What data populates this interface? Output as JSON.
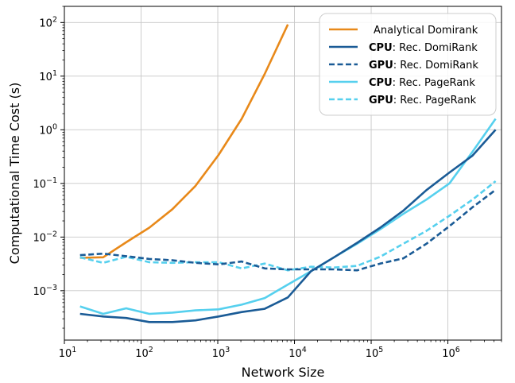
{
  "chart_data": {
    "type": "line",
    "title": "",
    "xlabel": "Network Size",
    "ylabel": "Computational Time Cost (s)",
    "xscale": "log",
    "yscale": "log",
    "xlim": [
      10,
      5000000
    ],
    "ylim": [
      0.00012,
      200
    ],
    "grid": true,
    "legend_position": "top-right",
    "x_ticks": [
      {
        "value": 10,
        "base": "10",
        "exp": "1"
      },
      {
        "value": 100,
        "base": "10",
        "exp": "2"
      },
      {
        "value": 1000,
        "base": "10",
        "exp": "3"
      },
      {
        "value": 10000,
        "base": "10",
        "exp": "4"
      },
      {
        "value": 100000,
        "base": "10",
        "exp": "5"
      },
      {
        "value": 1000000,
        "base": "10",
        "exp": "6"
      }
    ],
    "y_ticks": [
      {
        "value": 0.001,
        "base": "10",
        "exp": "−3"
      },
      {
        "value": 0.01,
        "base": "10",
        "exp": "−2"
      },
      {
        "value": 0.1,
        "base": "10",
        "exp": "−1"
      },
      {
        "value": 1,
        "base": "10",
        "exp": "0"
      },
      {
        "value": 10,
        "base": "10",
        "exp": "1"
      },
      {
        "value": 100,
        "base": "10",
        "exp": "2"
      }
    ],
    "series": [
      {
        "name": "Analytical Domirank",
        "prefix": "",
        "color": "#e8891a",
        "dash": "solid",
        "points": [
          [
            16,
            0.0041
          ],
          [
            32,
            0.0042
          ],
          [
            64,
            0.008
          ],
          [
            128,
            0.015
          ],
          [
            256,
            0.033
          ],
          [
            512,
            0.09
          ],
          [
            1024,
            0.34
          ],
          [
            2048,
            1.6
          ],
          [
            4096,
            11
          ],
          [
            8192,
            92
          ]
        ]
      },
      {
        "name": "Rec. DomiRank",
        "prefix": "CPU",
        "color": "#1a5b96",
        "dash": "solid",
        "points": [
          [
            16,
            0.00037
          ],
          [
            32,
            0.00033
          ],
          [
            64,
            0.00031
          ],
          [
            128,
            0.00026
          ],
          [
            256,
            0.00026
          ],
          [
            512,
            0.00028
          ],
          [
            1024,
            0.00033
          ],
          [
            2048,
            0.0004
          ],
          [
            4096,
            0.00046
          ],
          [
            8192,
            0.00075
          ],
          [
            16384,
            0.0023
          ],
          [
            32768,
            0.0042
          ],
          [
            65536,
            0.0078
          ],
          [
            131072,
            0.015
          ],
          [
            262144,
            0.031
          ],
          [
            524288,
            0.075
          ],
          [
            1048576,
            0.16
          ],
          [
            2097152,
            0.33
          ],
          [
            4194304,
            1.0
          ]
        ]
      },
      {
        "name": "Rec. DomiRank",
        "prefix": "GPU",
        "color": "#1a5b96",
        "dash": "dashed",
        "points": [
          [
            16,
            0.0046
          ],
          [
            32,
            0.0049
          ],
          [
            64,
            0.0044
          ],
          [
            128,
            0.0039
          ],
          [
            256,
            0.0037
          ],
          [
            512,
            0.0033
          ],
          [
            1024,
            0.0031
          ],
          [
            2048,
            0.0035
          ],
          [
            4096,
            0.0026
          ],
          [
            8192,
            0.0025
          ],
          [
            16384,
            0.0025
          ],
          [
            32768,
            0.0025
          ],
          [
            65536,
            0.0024
          ],
          [
            131072,
            0.0032
          ],
          [
            262144,
            0.004
          ],
          [
            524288,
            0.0075
          ],
          [
            1048576,
            0.016
          ],
          [
            2097152,
            0.036
          ],
          [
            4194304,
            0.076
          ]
        ]
      },
      {
        "name": "Rec. PageRank",
        "prefix": "CPU",
        "color": "#56d0ee",
        "dash": "solid",
        "points": [
          [
            16,
            0.00051
          ],
          [
            32,
            0.00037
          ],
          [
            64,
            0.00047
          ],
          [
            128,
            0.00037
          ],
          [
            256,
            0.00039
          ],
          [
            512,
            0.00043
          ],
          [
            1024,
            0.00045
          ],
          [
            2048,
            0.00055
          ],
          [
            4096,
            0.00073
          ],
          [
            8192,
            0.0013
          ],
          [
            16384,
            0.0023
          ],
          [
            32768,
            0.0042
          ],
          [
            65536,
            0.0075
          ],
          [
            131072,
            0.014
          ],
          [
            262144,
            0.027
          ],
          [
            524288,
            0.05
          ],
          [
            1048576,
            0.1
          ],
          [
            2097152,
            0.39
          ],
          [
            4194304,
            1.6
          ]
        ]
      },
      {
        "name": "Rec. PageRank",
        "prefix": "GPU",
        "color": "#56d0ee",
        "dash": "dashed",
        "points": [
          [
            16,
            0.0042
          ],
          [
            32,
            0.0033
          ],
          [
            64,
            0.0043
          ],
          [
            128,
            0.0034
          ],
          [
            256,
            0.0033
          ],
          [
            512,
            0.0034
          ],
          [
            1024,
            0.0034
          ],
          [
            2048,
            0.0026
          ],
          [
            4096,
            0.0032
          ],
          [
            8192,
            0.0024
          ],
          [
            16384,
            0.0028
          ],
          [
            32768,
            0.0027
          ],
          [
            65536,
            0.0029
          ],
          [
            131072,
            0.0043
          ],
          [
            262144,
            0.0075
          ],
          [
            524288,
            0.013
          ],
          [
            1048576,
            0.025
          ],
          [
            2097152,
            0.05
          ],
          [
            4194304,
            0.11
          ]
        ]
      }
    ]
  }
}
